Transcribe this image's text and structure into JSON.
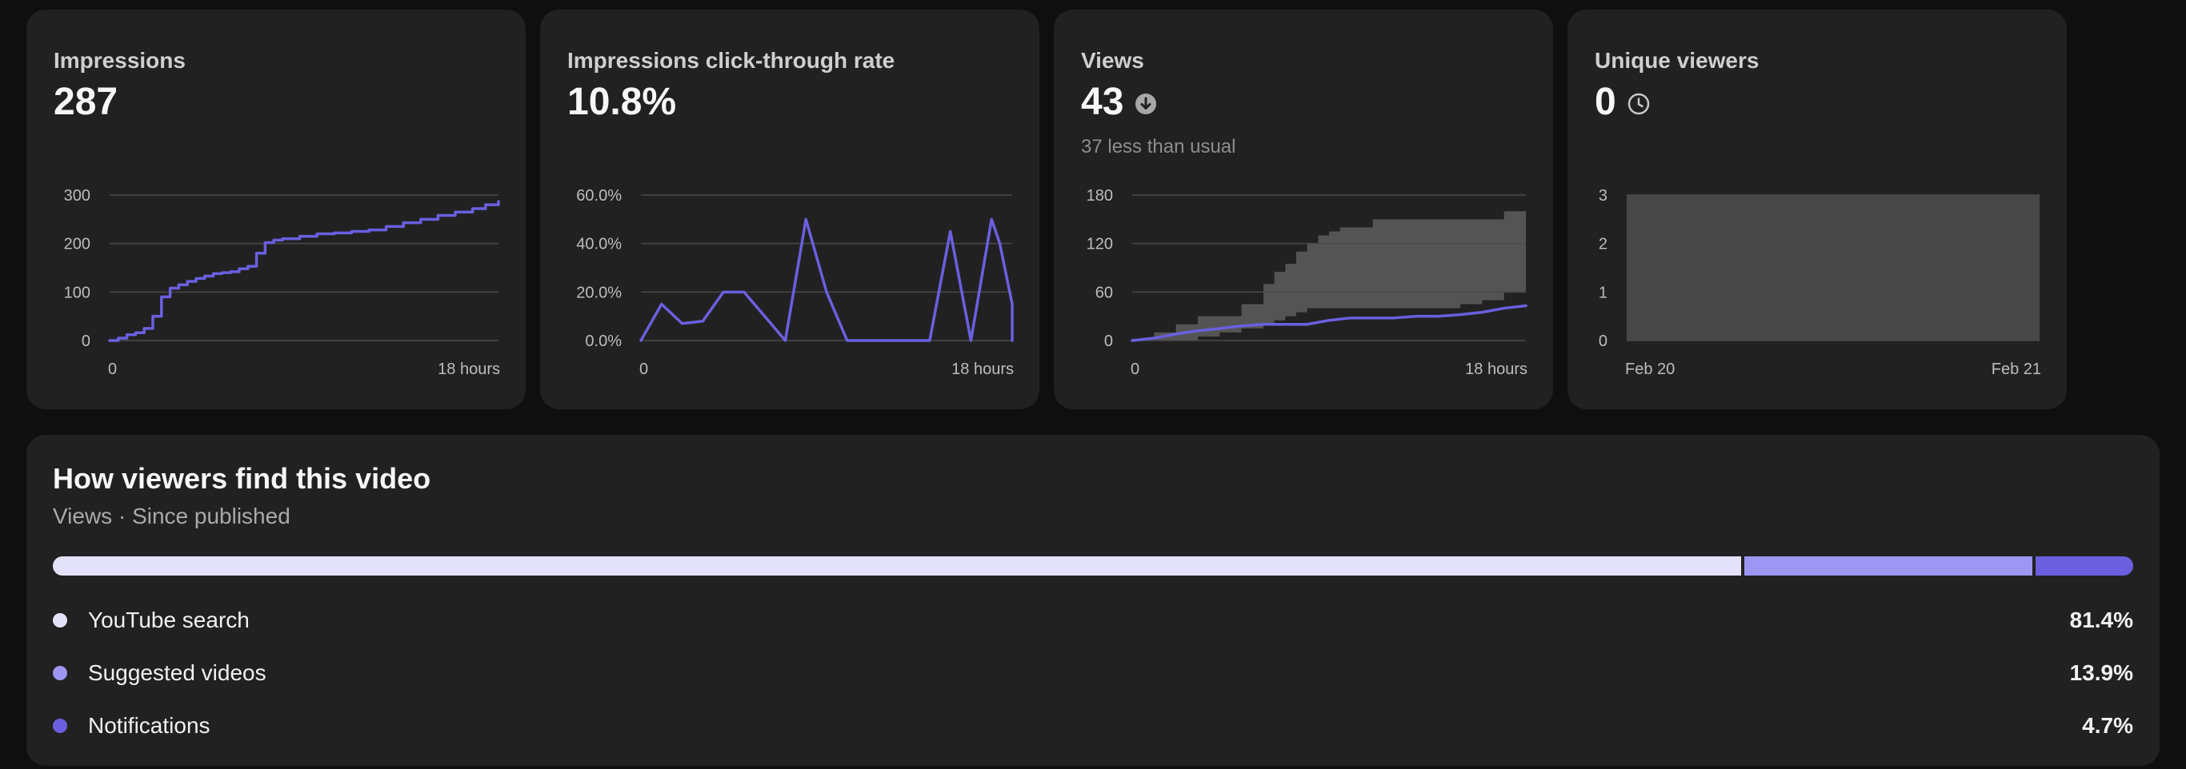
{
  "colors": {
    "background": "#0f0f0f",
    "card": "#212121",
    "accent_line": "#6b5fe0",
    "band": "#545454",
    "grid": "#4a4a4a"
  },
  "cards": [
    {
      "title": "Impressions",
      "value": "287",
      "note": "",
      "icon": "",
      "chart_data": {
        "type": "line",
        "title": "",
        "xlabel": "",
        "ylabel": "",
        "x_ticks": [
          "0",
          "18 hours"
        ],
        "y_ticks": [
          "0",
          "100",
          "200",
          "300"
        ],
        "xlim": [
          0,
          18
        ],
        "ylim": [
          0,
          300
        ],
        "grid": true,
        "step": true,
        "series": [
          {
            "x": [
              0,
              0.4,
              0.8,
              1.2,
              1.6,
              2.0,
              2.4,
              2.8,
              3.2,
              3.6,
              4.0,
              4.4,
              4.8,
              5.2,
              5.6,
              6.0,
              6.4,
              6.8,
              7.2,
              7.6,
              8.0,
              8.8,
              9.6,
              10.4,
              11.2,
              12.0,
              12.8,
              13.6,
              14.4,
              15.2,
              16.0,
              16.8,
              17.4,
              18.0
            ],
            "y": [
              0,
              5,
              12,
              16,
              25,
              50,
              90,
              108,
              115,
              122,
              128,
              133,
              138,
              140,
              142,
              148,
              153,
              180,
              202,
              207,
              210,
              215,
              220,
              222,
              225,
              228,
              235,
              243,
              250,
              258,
              265,
              272,
              280,
              287
            ]
          }
        ]
      }
    },
    {
      "title": "Impressions click-through rate",
      "value": "10.8%",
      "note": "",
      "icon": "",
      "chart_data": {
        "type": "line",
        "title": "",
        "xlabel": "",
        "ylabel": "",
        "x_ticks": [
          "0",
          "18 hours"
        ],
        "y_ticks": [
          "0.0%",
          "20.0%",
          "40.0%",
          "60.0%"
        ],
        "xlim": [
          0,
          18
        ],
        "ylim": [
          0,
          60
        ],
        "grid": true,
        "step": false,
        "series": [
          {
            "x": [
              0,
              1.0,
              2.0,
              3.0,
              4.0,
              5.0,
              6.0,
              7.0,
              8.0,
              9.0,
              10.0,
              11.0,
              12.0,
              13.0,
              14.0,
              15.0,
              16.0,
              17.0,
              17.4,
              18.0,
              18.0
            ],
            "y": [
              0,
              15,
              7,
              8,
              20,
              20,
              10,
              0,
              50,
              20,
              0,
              0,
              0,
              0,
              0,
              45,
              0,
              50,
              40,
              15,
              0
            ]
          }
        ]
      }
    },
    {
      "title": "Views",
      "value": "43",
      "note": "37 less than usual",
      "icon": "arrow-down-circle-icon",
      "chart_data": {
        "type": "area",
        "title": "",
        "xlabel": "",
        "ylabel": "",
        "x_ticks": [
          "0",
          "18 hours"
        ],
        "y_ticks": [
          "0",
          "60",
          "120",
          "180"
        ],
        "xlim": [
          0,
          18
        ],
        "ylim": [
          0,
          180
        ],
        "grid": true,
        "typical_range": {
          "x": [
            0,
            1,
            2,
            3,
            4,
            5,
            6,
            6.5,
            7,
            7.5,
            8,
            8.5,
            9,
            9.5,
            10,
            11,
            12,
            13,
            14,
            15,
            16,
            17,
            18
          ],
          "upper": [
            0,
            10,
            20,
            30,
            30,
            45,
            70,
            85,
            95,
            110,
            120,
            130,
            135,
            140,
            140,
            150,
            150,
            150,
            150,
            150,
            150,
            160,
            160
          ],
          "lower": [
            0,
            0,
            0,
            5,
            10,
            15,
            20,
            25,
            30,
            35,
            40,
            40,
            40,
            40,
            40,
            40,
            40,
            40,
            40,
            45,
            50,
            60,
            80
          ]
        },
        "series": [
          {
            "x": [
              0,
              1,
              2,
              3,
              4,
              5,
              6,
              7,
              8,
              9,
              10,
              11,
              12,
              13,
              14,
              15,
              16,
              17,
              18
            ],
            "y": [
              0,
              3,
              8,
              12,
              15,
              18,
              20,
              20,
              20,
              25,
              28,
              28,
              28,
              30,
              30,
              32,
              35,
              40,
              43
            ]
          }
        ]
      }
    },
    {
      "title": "Unique viewers",
      "value": "0",
      "note": "",
      "icon": "clock-icon",
      "chart_data": {
        "type": "area",
        "title": "",
        "xlabel": "",
        "ylabel": "",
        "x_ticks": [
          "Feb 20",
          "Feb 21"
        ],
        "y_ticks": [
          "0",
          "1",
          "2",
          "3"
        ],
        "xlim": [
          0,
          1
        ],
        "ylim": [
          0,
          3
        ],
        "grid": true,
        "typical_range": {
          "x": [
            0,
            1
          ],
          "upper": [
            3,
            3
          ],
          "lower": [
            0,
            0
          ]
        },
        "series": []
      }
    }
  ],
  "traffic": {
    "title": "How viewers find this video",
    "subtitle": "Views · Since published",
    "sources": [
      {
        "label": "YouTube search",
        "pct_text": "81.4%",
        "value": 81.4,
        "color": "#e4e2fb"
      },
      {
        "label": "Suggested videos",
        "pct_text": "13.9%",
        "value": 13.9,
        "color": "#9d96f2"
      },
      {
        "label": "Notifications",
        "pct_text": "4.7%",
        "value": 4.7,
        "color": "#6b5fe0"
      }
    ]
  }
}
